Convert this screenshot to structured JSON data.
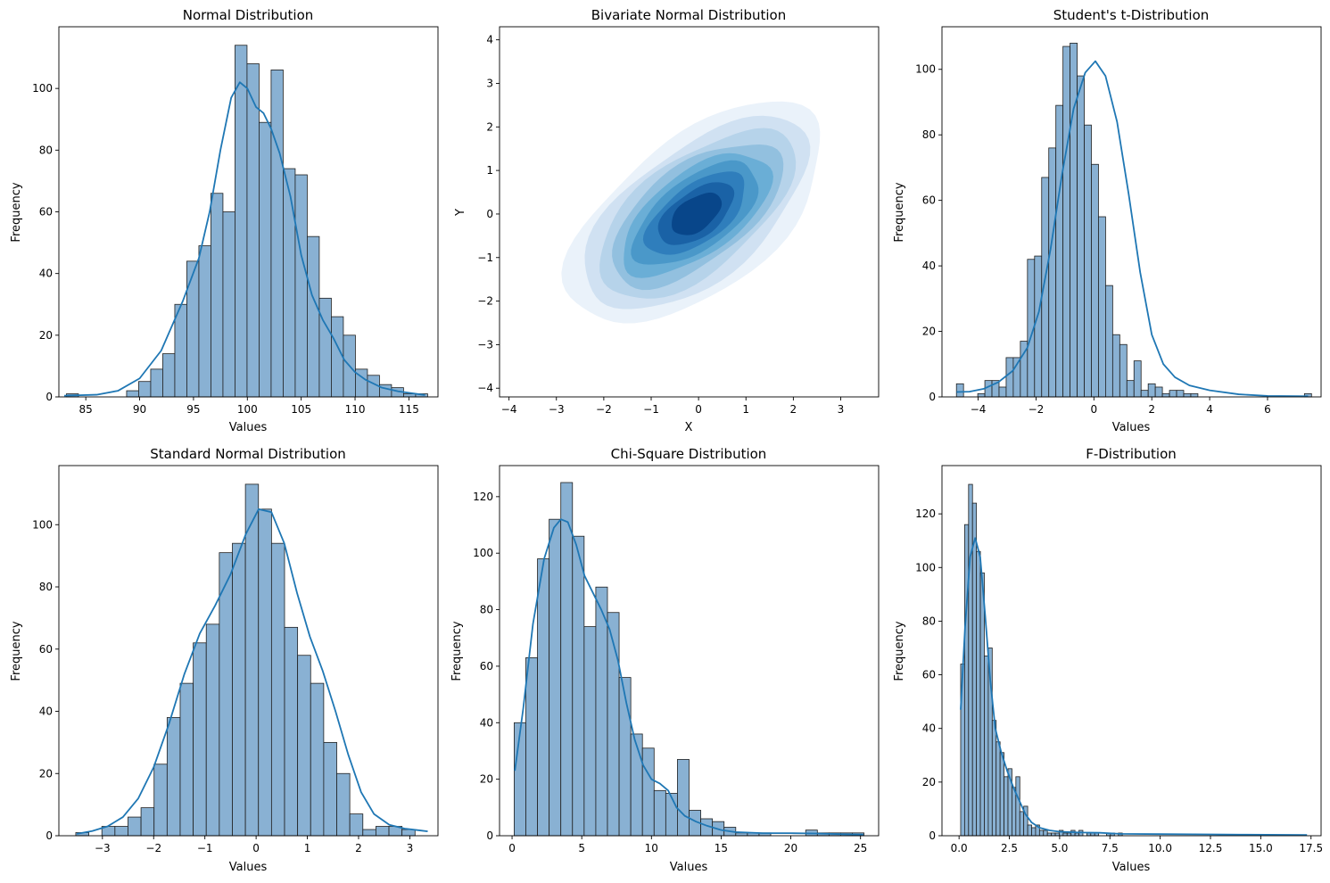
{
  "colors": {
    "accent": "#1f77b4",
    "bar_fill": "#89b1d3",
    "bar_edge": "#1f1f1f",
    "kde_levels": [
      "#eaf2fa",
      "#d0e1f2",
      "#b6d3ea",
      "#92c0df",
      "#6aaed6",
      "#4a98c9",
      "#2f7ebc",
      "#1a62a6",
      "#08468a"
    ]
  },
  "chart_data": [
    {
      "type": "bar",
      "subtype": "histogram+kde",
      "title": "Normal Distribution",
      "xlabel": "Values",
      "ylabel": "Frequency",
      "xlim": [
        82.5,
        117.7
      ],
      "ylim": [
        0,
        120
      ],
      "xticks": [
        85,
        90,
        95,
        100,
        105,
        110,
        115
      ],
      "yticks": [
        0,
        20,
        40,
        60,
        80,
        100
      ],
      "bin_start": 83.2,
      "bin_width": 1.118,
      "values": [
        1,
        0,
        0,
        0,
        0,
        2,
        5,
        9,
        14,
        30,
        44,
        49,
        66,
        60,
        114,
        108,
        89,
        106,
        74,
        72,
        52,
        32,
        26,
        20,
        9,
        7,
        4,
        3,
        1,
        1
      ],
      "kde": [
        [
          83,
          0.4
        ],
        [
          86,
          0.7
        ],
        [
          88,
          2
        ],
        [
          90,
          6
        ],
        [
          92,
          15
        ],
        [
          94,
          31
        ],
        [
          95.5,
          45
        ],
        [
          96.5,
          60
        ],
        [
          97.5,
          80
        ],
        [
          98.5,
          97
        ],
        [
          99.3,
          102
        ],
        [
          100,
          100
        ],
        [
          100.8,
          94
        ],
        [
          101.5,
          92
        ],
        [
          102.2,
          87
        ],
        [
          103,
          79
        ],
        [
          104,
          65
        ],
        [
          105,
          46
        ],
        [
          106,
          33
        ],
        [
          107,
          25
        ],
        [
          108,
          19
        ],
        [
          109,
          12
        ],
        [
          110,
          8
        ],
        [
          111,
          5.5
        ],
        [
          112.5,
          3
        ],
        [
          114,
          1.8
        ],
        [
          116.5,
          0.6
        ]
      ]
    },
    {
      "type": "heatmap",
      "subtype": "kde-contour",
      "title": "Bivariate Normal Distribution",
      "xlabel": "X",
      "ylabel": "Y",
      "xlim": [
        -4.2,
        3.8
      ],
      "ylim": [
        -4.2,
        4.3
      ],
      "xticks": [
        -4,
        -3,
        -2,
        -1,
        0,
        1,
        2,
        3
      ],
      "yticks": [
        -4,
        -3,
        -2,
        -1,
        0,
        1,
        2,
        3,
        4
      ],
      "center": [
        -0.05,
        0.0
      ],
      "levels": [
        {
          "a": 3.3,
          "b": 1.7,
          "angle": 42
        },
        {
          "a": 2.9,
          "b": 1.45,
          "angle": 42
        },
        {
          "a": 2.55,
          "b": 1.25,
          "angle": 42
        },
        {
          "a": 2.2,
          "b": 1.08,
          "angle": 41
        },
        {
          "a": 1.9,
          "b": 0.92,
          "angle": 40
        },
        {
          "a": 1.6,
          "b": 0.78,
          "angle": 40
        },
        {
          "a": 1.28,
          "b": 0.63,
          "angle": 40
        },
        {
          "a": 0.95,
          "b": 0.5,
          "angle": 40
        },
        {
          "a": 0.62,
          "b": 0.36,
          "angle": 40
        }
      ]
    },
    {
      "type": "bar",
      "subtype": "histogram+kde",
      "title": "Student's t-Distribution",
      "xlabel": "Values",
      "ylabel": "Frequency",
      "xlim": [
        -5.25,
        7.85
      ],
      "ylim": [
        0,
        113
      ],
      "xticks": [
        -4,
        -2,
        0,
        2,
        4,
        6
      ],
      "yticks": [
        0,
        20,
        40,
        60,
        80,
        100
      ],
      "bin_start": -4.75,
      "bin_width": 0.2454,
      "values": [
        4,
        0,
        0,
        1,
        5,
        5,
        3,
        12,
        12,
        17,
        42,
        43,
        67,
        76,
        89,
        107,
        108,
        98,
        83,
        71,
        55,
        34,
        19,
        16,
        5,
        11,
        2,
        4,
        3,
        1,
        2,
        2,
        1,
        1,
        0,
        0,
        0,
        0,
        0,
        0,
        0,
        0,
        0,
        0,
        0,
        0,
        0,
        0,
        0,
        1
      ],
      "kde": [
        [
          -4.75,
          1.5
        ],
        [
          -4.3,
          1.6
        ],
        [
          -3.8,
          2.5
        ],
        [
          -3.3,
          4.5
        ],
        [
          -2.8,
          8
        ],
        [
          -2.3,
          15
        ],
        [
          -1.9,
          26
        ],
        [
          -1.5,
          45
        ],
        [
          -1.1,
          68
        ],
        [
          -0.7,
          88
        ],
        [
          -0.3,
          99
        ],
        [
          0.05,
          102.5
        ],
        [
          0.4,
          98
        ],
        [
          0.8,
          84
        ],
        [
          1.2,
          62
        ],
        [
          1.6,
          38
        ],
        [
          2.0,
          19
        ],
        [
          2.4,
          10
        ],
        [
          2.8,
          6
        ],
        [
          3.3,
          3.5
        ],
        [
          4.0,
          2
        ],
        [
          5.0,
          0.8
        ],
        [
          6.0,
          0.3
        ],
        [
          7.4,
          0.2
        ]
      ]
    },
    {
      "type": "bar",
      "subtype": "histogram+kde",
      "title": "Standard Normal Distribution",
      "xlabel": "Values",
      "ylabel": "Frequency",
      "xlim": [
        -3.85,
        3.55
      ],
      "ylim": [
        0,
        119
      ],
      "xticks": [
        -3,
        -2,
        -1,
        0,
        1,
        2,
        3
      ],
      "yticks": [
        0,
        20,
        40,
        60,
        80,
        100
      ],
      "bin_start": -3.52,
      "bin_width": 0.2547,
      "values": [
        1,
        0,
        3,
        3,
        6,
        9,
        23,
        38,
        49,
        62,
        68,
        91,
        94,
        113,
        105,
        94,
        67,
        58,
        49,
        30,
        20,
        7,
        2,
        3,
        3,
        2
      ],
      "kde": [
        [
          -3.5,
          0.6
        ],
        [
          -3.2,
          1.5
        ],
        [
          -2.9,
          3
        ],
        [
          -2.6,
          6
        ],
        [
          -2.3,
          12
        ],
        [
          -2.0,
          22
        ],
        [
          -1.7,
          36
        ],
        [
          -1.4,
          52
        ],
        [
          -1.1,
          65
        ],
        [
          -0.8,
          74
        ],
        [
          -0.5,
          84
        ],
        [
          -0.2,
          97
        ],
        [
          0.05,
          105
        ],
        [
          0.3,
          104
        ],
        [
          0.55,
          94
        ],
        [
          0.8,
          78
        ],
        [
          1.05,
          64
        ],
        [
          1.3,
          53
        ],
        [
          1.55,
          40
        ],
        [
          1.8,
          26
        ],
        [
          2.05,
          14
        ],
        [
          2.3,
          7
        ],
        [
          2.6,
          3.5
        ],
        [
          2.9,
          2.3
        ],
        [
          3.2,
          1.7
        ],
        [
          3.35,
          1.4
        ]
      ]
    },
    {
      "type": "bar",
      "subtype": "histogram+kde",
      "title": "Chi-Square Distribution",
      "xlabel": "Values",
      "ylabel": "Frequency",
      "xlim": [
        -0.9,
        26.3
      ],
      "ylim": [
        0,
        131
      ],
      "xticks": [
        0,
        5,
        10,
        15,
        20,
        25
      ],
      "yticks": [
        0,
        20,
        40,
        60,
        80,
        100,
        120
      ],
      "bin_start": 0.15,
      "bin_width": 0.8367,
      "values": [
        40,
        63,
        98,
        112,
        125,
        106,
        74,
        88,
        79,
        56,
        36,
        31,
        16,
        15,
        27,
        9,
        6,
        5,
        3,
        1,
        1,
        1,
        0,
        0,
        0,
        2,
        1,
        1,
        1,
        1
      ],
      "kde": [
        [
          0.2,
          23
        ],
        [
          0.8,
          45
        ],
        [
          1.5,
          75
        ],
        [
          2.3,
          98
        ],
        [
          3.0,
          109
        ],
        [
          3.5,
          112
        ],
        [
          4.0,
          111
        ],
        [
          4.6,
          103
        ],
        [
          5.2,
          92
        ],
        [
          5.8,
          86
        ],
        [
          6.4,
          80
        ],
        [
          7.0,
          73
        ],
        [
          7.6,
          62
        ],
        [
          8.2,
          47
        ],
        [
          8.8,
          34
        ],
        [
          9.4,
          25
        ],
        [
          10.0,
          20
        ],
        [
          10.6,
          18.5
        ],
        [
          11.2,
          16
        ],
        [
          11.8,
          10
        ],
        [
          12.4,
          7
        ],
        [
          13.2,
          5
        ],
        [
          14.0,
          3.5
        ],
        [
          15.0,
          2
        ],
        [
          16.0,
          1.3
        ],
        [
          18.0,
          0.9
        ],
        [
          20.0,
          0.9
        ],
        [
          22.0,
          0.8
        ],
        [
          24.0,
          0.5
        ],
        [
          25.2,
          0.4
        ]
      ]
    },
    {
      "type": "bar",
      "subtype": "histogram+kde",
      "title": "F-Distribution",
      "xlabel": "Values",
      "ylabel": "Frequency",
      "xlim": [
        -0.85,
        18.0
      ],
      "ylim": [
        0,
        138
      ],
      "xticks": [
        0.0,
        2.5,
        5.0,
        7.5,
        10.0,
        12.5,
        15.0,
        17.5
      ],
      "tick_labels": [
        "0.0",
        "2.5",
        "5.0",
        "7.5",
        "10.0",
        "12.5",
        "15.0",
        "17.5"
      ],
      "yticks": [
        0,
        20,
        40,
        60,
        80,
        100,
        120
      ],
      "bin_start": 0.08,
      "bin_width": 0.196,
      "values": [
        64,
        116,
        131,
        124,
        106,
        98,
        67,
        70,
        43,
        35,
        31,
        22,
        25,
        18,
        22,
        9,
        11,
        4,
        3,
        4,
        2,
        2,
        1,
        1,
        1,
        2,
        1,
        1,
        2,
        1,
        2,
        0,
        1,
        1,
        1,
        0,
        0,
        1,
        1,
        0,
        1,
        0,
        0,
        0,
        0,
        0,
        0,
        0,
        0,
        0,
        0,
        0,
        0,
        0,
        0,
        0,
        0,
        0,
        0,
        0,
        0,
        0,
        0,
        0,
        0,
        0,
        0,
        0,
        0,
        0,
        0,
        0,
        0,
        0,
        0,
        0,
        0,
        0,
        0,
        0,
        0,
        0,
        0,
        0,
        0,
        0,
        0,
        0
      ],
      "kde": [
        [
          0.08,
          47
        ],
        [
          0.3,
          78
        ],
        [
          0.55,
          104
        ],
        [
          0.8,
          111
        ],
        [
          1.05,
          104
        ],
        [
          1.3,
          82
        ],
        [
          1.55,
          58
        ],
        [
          1.8,
          40
        ],
        [
          2.1,
          31
        ],
        [
          2.4,
          24
        ],
        [
          2.7,
          18
        ],
        [
          3.0,
          13
        ],
        [
          3.3,
          8
        ],
        [
          3.6,
          5
        ],
        [
          4.0,
          3
        ],
        [
          4.5,
          2
        ],
        [
          5.0,
          1.5
        ],
        [
          6.0,
          1.2
        ],
        [
          7.0,
          1.1
        ],
        [
          8.0,
          0.7
        ],
        [
          10.0,
          0.6
        ],
        [
          12.5,
          0.5
        ],
        [
          14.0,
          0.4
        ],
        [
          17.3,
          0.3
        ]
      ]
    }
  ]
}
